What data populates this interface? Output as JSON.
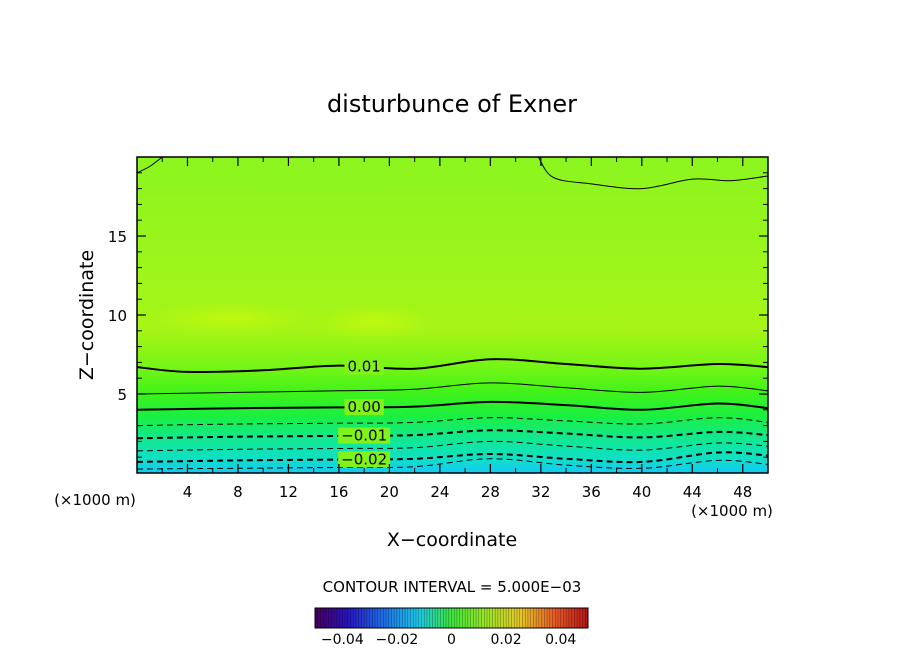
{
  "chart_data": {
    "type": "heatmap",
    "title": "disturbunce of Exner",
    "xlabel": "X−coordinate",
    "ylabel": "Z−coordinate",
    "x_unit": "(×1000 m)",
    "y_unit": "(×1000 m)",
    "xlim": [
      0,
      50
    ],
    "ylim": [
      0,
      20
    ],
    "x_ticks": [
      4,
      8,
      12,
      16,
      20,
      24,
      28,
      32,
      36,
      40,
      44,
      48
    ],
    "x_tick_labels": [
      "4",
      "8",
      "12",
      "16",
      "20",
      "24",
      "28",
      "32",
      "36",
      "40",
      "44",
      "48"
    ],
    "y_ticks": [
      5,
      10,
      15
    ],
    "y_tick_labels": [
      "5",
      "10",
      "15"
    ],
    "contour_interval_text": "CONTOUR INTERVAL = 5.000E−03",
    "contours": [
      {
        "level": -0.025,
        "style": "dashed",
        "label": "",
        "x": [
          0,
          8,
          16,
          22,
          28,
          34,
          40,
          46,
          50
        ],
        "y": [
          0.25,
          0.3,
          0.35,
          0.4,
          0.9,
          0.5,
          0.3,
          0.8,
          0.55
        ]
      },
      {
        "level": -0.02,
        "style": "dashed",
        "label": "−0.02",
        "x": [
          0,
          8,
          16,
          22,
          28,
          34,
          40,
          46,
          50
        ],
        "y": [
          0.7,
          0.8,
          0.85,
          0.9,
          1.2,
          0.9,
          0.7,
          1.3,
          1.1
        ]
      },
      {
        "level": -0.015,
        "style": "dashed",
        "label": "",
        "x": [
          0,
          8,
          16,
          22,
          28,
          34,
          40,
          46,
          50
        ],
        "y": [
          1.4,
          1.5,
          1.55,
          1.6,
          2.0,
          1.7,
          1.45,
          1.9,
          1.7
        ]
      },
      {
        "level": -0.01,
        "style": "dashed",
        "label": "−0.01",
        "x": [
          0,
          8,
          16,
          22,
          28,
          34,
          40,
          46,
          50
        ],
        "y": [
          2.2,
          2.3,
          2.35,
          2.4,
          2.7,
          2.5,
          2.25,
          2.6,
          2.4
        ]
      },
      {
        "level": -0.005,
        "style": "dashed",
        "label": "",
        "x": [
          0,
          8,
          16,
          22,
          28,
          34,
          40,
          46,
          50
        ],
        "y": [
          3.0,
          3.1,
          3.15,
          3.2,
          3.5,
          3.3,
          3.1,
          3.5,
          3.2
        ]
      },
      {
        "level": 0.0,
        "style": "solid",
        "label": "0.00",
        "x": [
          0,
          8,
          16,
          22,
          28,
          34,
          40,
          46,
          50
        ],
        "y": [
          4.0,
          4.1,
          4.15,
          4.2,
          4.5,
          4.3,
          4.0,
          4.4,
          4.1
        ]
      },
      {
        "level": 0.005,
        "style": "solid",
        "label": "",
        "x": [
          0,
          8,
          16,
          22,
          28,
          34,
          40,
          46,
          50
        ],
        "y": [
          5.0,
          5.1,
          5.2,
          5.3,
          5.7,
          5.4,
          5.1,
          5.5,
          5.2
        ]
      },
      {
        "level": 0.01,
        "style": "solid",
        "label": "0.01",
        "x": [
          0,
          4,
          10,
          16,
          22,
          28,
          34,
          40,
          46,
          50
        ],
        "y": [
          6.7,
          6.4,
          6.5,
          6.8,
          6.6,
          7.2,
          6.9,
          6.6,
          6.9,
          6.7
        ]
      },
      {
        "level": 0.015,
        "style": "solid",
        "label": "",
        "x": [
          0,
          1,
          2
        ],
        "y": [
          19.0,
          19.4,
          20.0
        ]
      },
      {
        "level": 0.015,
        "style": "solid",
        "label": "",
        "x": [
          31.8,
          33,
          36,
          40,
          44,
          47,
          50
        ],
        "y": [
          20.0,
          18.7,
          18.3,
          18.0,
          18.6,
          18.5,
          18.8
        ]
      }
    ],
    "colorbar": {
      "min": -0.05,
      "max": 0.05,
      "ticks": [
        -0.04,
        -0.02,
        0,
        0.02,
        0.04
      ],
      "tick_labels": [
        "−0.04",
        "−0.02",
        "0",
        "0.02",
        "0.04"
      ]
    }
  }
}
